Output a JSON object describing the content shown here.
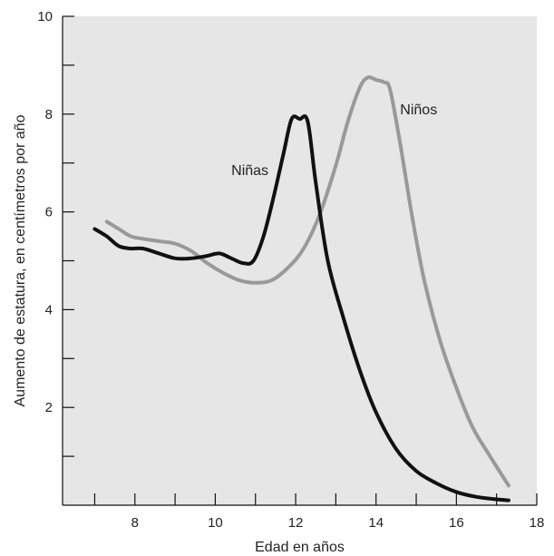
{
  "chart_data": {
    "type": "line",
    "title": "",
    "xlabel": "Edad en años",
    "ylabel": "Aumento de estatura, en centímetros por año",
    "xlim": [
      6.2,
      18
    ],
    "ylim": [
      0,
      10
    ],
    "x_ticks": [
      7,
      8,
      9,
      10,
      11,
      12,
      13,
      14,
      15,
      16,
      17,
      18
    ],
    "x_tick_labels": [
      "",
      "8",
      "",
      "10",
      "",
      "12",
      "",
      "14",
      "",
      "16",
      "",
      "18"
    ],
    "y_ticks": [
      1,
      2,
      3,
      4,
      5,
      6,
      7,
      8,
      9,
      10
    ],
    "y_tick_labels": [
      "",
      "2",
      "",
      "4",
      "",
      "6",
      "",
      "8",
      "",
      "10"
    ],
    "grid": false,
    "legend": "none",
    "plot_background": "#e6e6e6",
    "series": [
      {
        "name": "Niñas",
        "color": "#111111",
        "x": [
          7.0,
          7.3,
          7.6,
          7.9,
          8.2,
          8.6,
          9.0,
          9.4,
          9.8,
          10.1,
          10.4,
          10.7,
          10.95,
          11.2,
          11.45,
          11.7,
          11.9,
          12.1,
          12.3,
          12.5,
          12.8,
          13.2,
          13.6,
          14.0,
          14.5,
          15.0,
          15.5,
          16.0,
          16.5,
          17.0,
          17.3
        ],
        "y": [
          5.65,
          5.5,
          5.3,
          5.25,
          5.25,
          5.15,
          5.05,
          5.05,
          5.1,
          5.15,
          5.05,
          4.95,
          5.0,
          5.5,
          6.3,
          7.2,
          7.9,
          7.9,
          7.85,
          6.6,
          5.0,
          3.8,
          2.75,
          1.9,
          1.15,
          0.7,
          0.45,
          0.27,
          0.17,
          0.12,
          0.1
        ]
      },
      {
        "name": "Niños",
        "color": "#999999",
        "x": [
          7.3,
          7.6,
          7.9,
          8.2,
          8.6,
          9.0,
          9.4,
          9.8,
          10.2,
          10.6,
          11.0,
          11.4,
          11.8,
          12.2,
          12.6,
          13.0,
          13.3,
          13.6,
          13.8,
          14.0,
          14.2,
          14.35,
          14.6,
          14.9,
          15.2,
          15.6,
          16.0,
          16.4,
          16.8,
          17.3
        ],
        "y": [
          5.8,
          5.65,
          5.5,
          5.45,
          5.4,
          5.35,
          5.2,
          4.95,
          4.75,
          4.6,
          4.55,
          4.6,
          4.85,
          5.25,
          5.95,
          6.95,
          7.85,
          8.55,
          8.75,
          8.7,
          8.65,
          8.5,
          7.4,
          5.9,
          4.6,
          3.35,
          2.4,
          1.6,
          1.05,
          0.4
        ]
      }
    ],
    "annotations": [
      {
        "text": "Niñas",
        "x": 10.4,
        "y": 6.75
      },
      {
        "text": "Niños",
        "x": 14.6,
        "y": 8.0
      }
    ]
  }
}
